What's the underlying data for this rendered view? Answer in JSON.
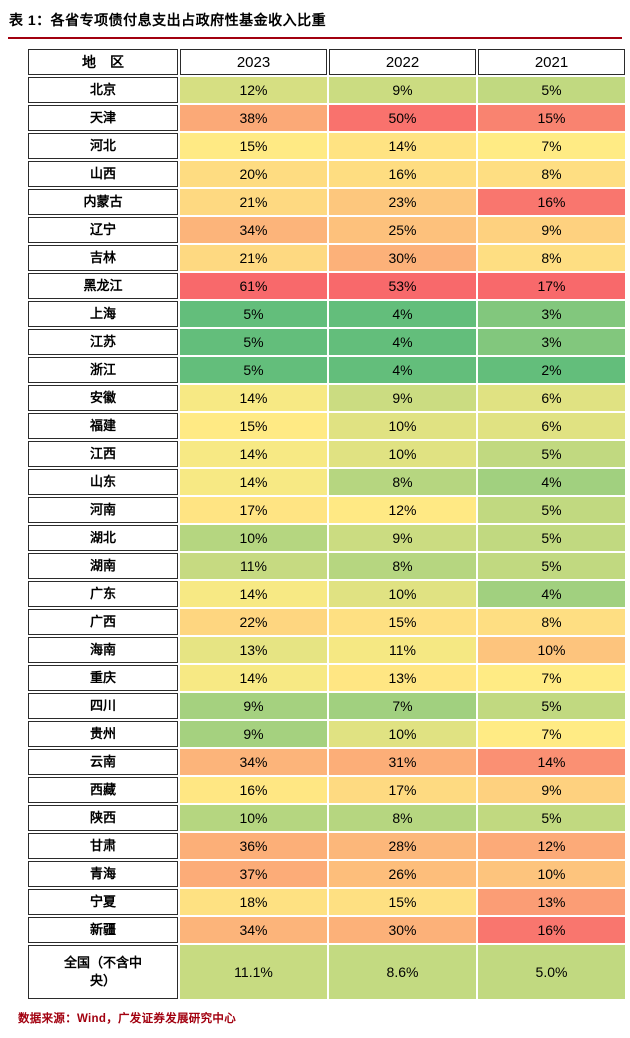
{
  "page": {
    "title": "表 1：各省专项债付息支出占政府性基金收入比重",
    "source_note": "数据来源：Wind，广发证券发展研究中心"
  },
  "colors": {
    "accent": "#A2000F",
    "heat_low": "#63BE7B",
    "heat_mid": "#FFEB84",
    "heat_high": "#F8696B"
  },
  "chart_data": {
    "type": "heatmap",
    "title": "表 1：各省专项债付息支出占政府性基金收入比重",
    "columns": [
      "地　区",
      "2023",
      "2022",
      "2021"
    ],
    "unit": "%",
    "color_scale": "per-column 3-color scale: min=green, median=yellow, max=red",
    "rows": [
      {
        "region": "北京",
        "values": [
          "12%",
          "9%",
          "5%"
        ]
      },
      {
        "region": "天津",
        "values": [
          "38%",
          "50%",
          "15%"
        ]
      },
      {
        "region": "河北",
        "values": [
          "15%",
          "14%",
          "7%"
        ]
      },
      {
        "region": "山西",
        "values": [
          "20%",
          "16%",
          "8%"
        ]
      },
      {
        "region": "内蒙古",
        "values": [
          "21%",
          "23%",
          "16%"
        ]
      },
      {
        "region": "辽宁",
        "values": [
          "34%",
          "25%",
          "9%"
        ]
      },
      {
        "region": "吉林",
        "values": [
          "21%",
          "30%",
          "8%"
        ]
      },
      {
        "region": "黑龙江",
        "values": [
          "61%",
          "53%",
          "17%"
        ]
      },
      {
        "region": "上海",
        "values": [
          "5%",
          "4%",
          "3%"
        ]
      },
      {
        "region": "江苏",
        "values": [
          "5%",
          "4%",
          "3%"
        ]
      },
      {
        "region": "浙江",
        "values": [
          "5%",
          "4%",
          "2%"
        ]
      },
      {
        "region": "安徽",
        "values": [
          "14%",
          "9%",
          "6%"
        ]
      },
      {
        "region": "福建",
        "values": [
          "15%",
          "10%",
          "6%"
        ]
      },
      {
        "region": "江西",
        "values": [
          "14%",
          "10%",
          "5%"
        ]
      },
      {
        "region": "山东",
        "values": [
          "14%",
          "8%",
          "4%"
        ]
      },
      {
        "region": "河南",
        "values": [
          "17%",
          "12%",
          "5%"
        ]
      },
      {
        "region": "湖北",
        "values": [
          "10%",
          "9%",
          "5%"
        ]
      },
      {
        "region": "湖南",
        "values": [
          "11%",
          "8%",
          "5%"
        ]
      },
      {
        "region": "广东",
        "values": [
          "14%",
          "10%",
          "4%"
        ]
      },
      {
        "region": "广西",
        "values": [
          "22%",
          "15%",
          "8%"
        ]
      },
      {
        "region": "海南",
        "values": [
          "13%",
          "11%",
          "10%"
        ]
      },
      {
        "region": "重庆",
        "values": [
          "14%",
          "13%",
          "7%"
        ]
      },
      {
        "region": "四川",
        "values": [
          "9%",
          "7%",
          "5%"
        ]
      },
      {
        "region": "贵州",
        "values": [
          "9%",
          "10%",
          "7%"
        ]
      },
      {
        "region": "云南",
        "values": [
          "34%",
          "31%",
          "14%"
        ]
      },
      {
        "region": "西藏",
        "values": [
          "16%",
          "17%",
          "9%"
        ]
      },
      {
        "region": "陕西",
        "values": [
          "10%",
          "8%",
          "5%"
        ]
      },
      {
        "region": "甘肃",
        "values": [
          "36%",
          "28%",
          "12%"
        ]
      },
      {
        "region": "青海",
        "values": [
          "37%",
          "26%",
          "10%"
        ]
      },
      {
        "region": "宁夏",
        "values": [
          "18%",
          "15%",
          "13%"
        ]
      },
      {
        "region": "新疆",
        "values": [
          "34%",
          "30%",
          "16%"
        ]
      },
      {
        "region": "全国（不含中央）",
        "values": [
          "11.1%",
          "8.6%",
          "5.0%"
        ],
        "summary": true
      }
    ]
  }
}
